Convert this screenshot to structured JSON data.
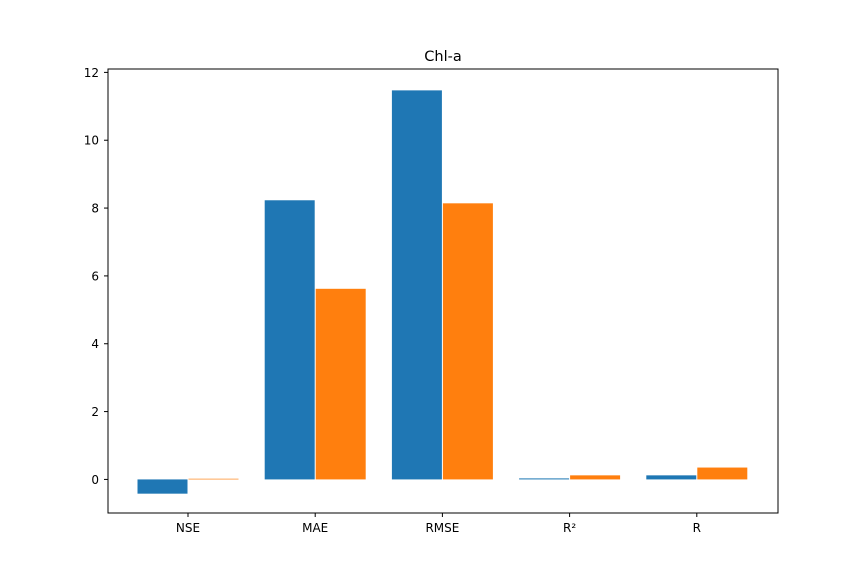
{
  "chart_data": {
    "type": "bar",
    "title": "Chl-a",
    "xlabel": "",
    "ylabel": "",
    "categories": [
      "NSE",
      "MAE",
      "RMSE",
      "R²",
      "R"
    ],
    "series": [
      {
        "values": [
          -0.42,
          8.23,
          11.47,
          0.03,
          0.12
        ],
        "color": "#1f77b4"
      },
      {
        "values": [
          0.02,
          5.62,
          8.14,
          0.12,
          0.35
        ],
        "color": "#ff7f0e"
      }
    ],
    "yticks": [
      0,
      2,
      4,
      6,
      8,
      10,
      12
    ],
    "ylim": [
      -0.99,
      12.1
    ],
    "grid": false,
    "legend": "none"
  }
}
